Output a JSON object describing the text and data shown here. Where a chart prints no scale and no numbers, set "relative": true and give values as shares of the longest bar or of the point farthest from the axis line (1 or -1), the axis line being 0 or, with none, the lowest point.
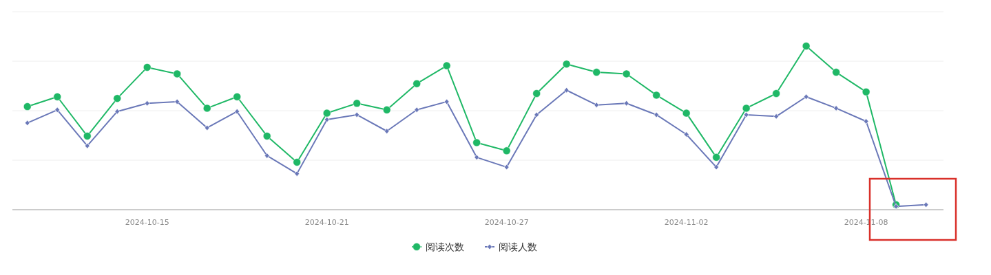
{
  "chart_data": {
    "type": "line",
    "relative": true,
    "x": [
      "2024-10-11",
      "2024-10-12",
      "2024-10-13",
      "2024-10-14",
      "2024-10-15",
      "2024-10-16",
      "2024-10-17",
      "2024-10-18",
      "2024-10-19",
      "2024-10-20",
      "2024-10-21",
      "2024-10-22",
      "2024-10-23",
      "2024-10-24",
      "2024-10-25",
      "2024-10-26",
      "2024-10-27",
      "2024-10-28",
      "2024-10-29",
      "2024-10-30",
      "2024-10-31",
      "2024-11-01",
      "2024-11-02",
      "2024-11-03",
      "2024-11-04",
      "2024-11-05",
      "2024-11-06",
      "2024-11-07",
      "2024-11-08",
      "2024-11-09",
      "2024-11-10"
    ],
    "xlim": [
      "2024-10-10T12:00",
      "2024-11-10T14:00"
    ],
    "xticks": [
      "2024-10-15",
      "2024-10-21",
      "2024-10-27",
      "2024-11-02",
      "2024-11-08"
    ],
    "series": [
      {
        "name": "阅读次数",
        "color": "#1fb866",
        "marker": "circle",
        "values": [
          0.63,
          0.69,
          0.45,
          0.68,
          0.87,
          0.83,
          0.62,
          0.69,
          0.45,
          0.29,
          0.59,
          0.65,
          0.61,
          0.77,
          0.88,
          0.41,
          0.36,
          0.71,
          0.89,
          0.84,
          0.83,
          0.7,
          0.59,
          0.32,
          0.62,
          0.71,
          1,
          0.84,
          0.72,
          0.03,
          null
        ]
      },
      {
        "name": "阅读人数",
        "color": "#6a78b8",
        "marker": "diamond",
        "values": [
          0.53,
          0.61,
          0.39,
          0.6,
          0.65,
          0.66,
          0.5,
          0.6,
          0.33,
          0.22,
          0.55,
          0.58,
          0.48,
          0.61,
          0.66,
          0.32,
          0.26,
          0.58,
          0.73,
          0.64,
          0.65,
          0.58,
          0.46,
          0.26,
          0.58,
          0.57,
          0.69,
          0.62,
          0.54,
          0.02,
          0.03
        ]
      }
    ],
    "grid": "y",
    "legend": "bottom",
    "line_style": "solid"
  }
}
